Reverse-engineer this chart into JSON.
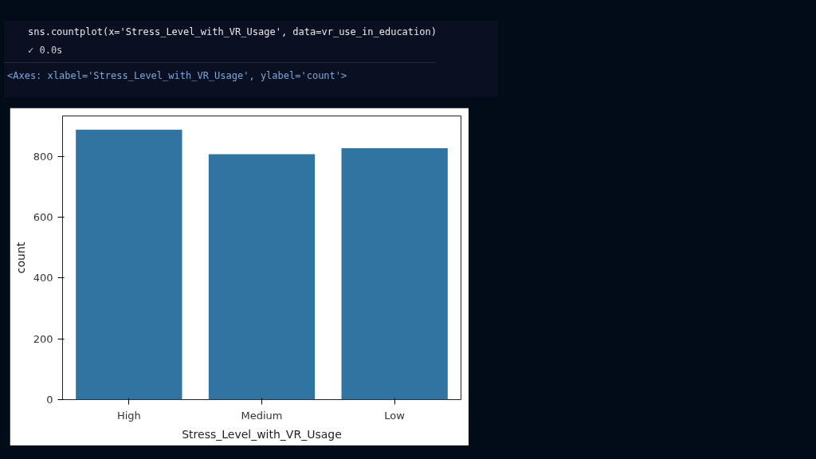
{
  "chart_data": {
    "type": "bar",
    "xlabel": "Stress_Level_with_VR_Usage",
    "ylabel": "count",
    "categories": [
      "High",
      "Medium",
      "Low"
    ],
    "values": [
      888,
      807,
      827
    ],
    "color": "#3274a1",
    "ylim": [
      0,
      933
    ],
    "yticks": [
      0,
      200,
      400,
      600,
      800
    ],
    "grid": false,
    "annotations": [
      "sns.countplot(x='Stress_Level_with_VR_Usage', data=vr_use_in_education)",
      "✓  0.0s",
      "<Axes: xlabel='Stress_Level_with_VR_Usage', ylabel='count'>"
    ]
  }
}
